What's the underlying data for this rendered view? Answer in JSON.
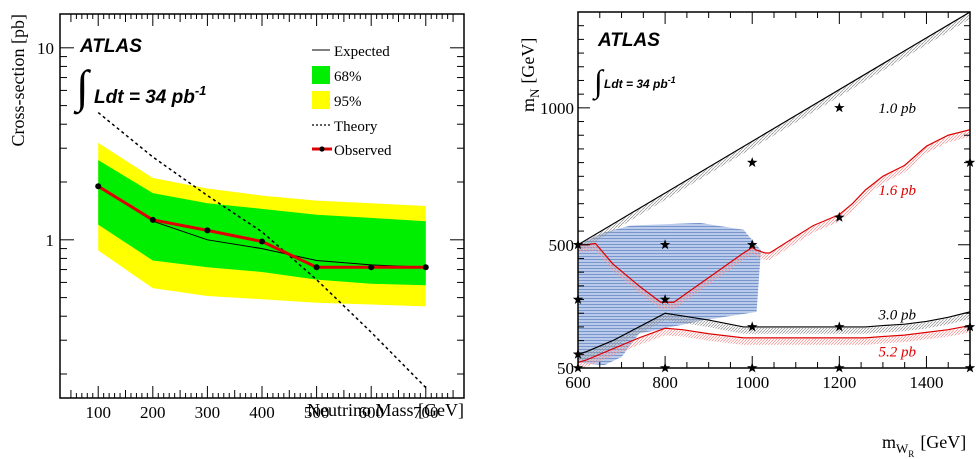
{
  "chart_data": [
    {
      "type": "line",
      "xlabel": "Neutrino Mass [GeV]",
      "ylabel": "Cross-section [pb]",
      "xlim": [
        30,
        770
      ],
      "ylim": [
        0.15,
        15
      ],
      "yscale": "log",
      "xticks": [
        100,
        200,
        300,
        400,
        500,
        600,
        700
      ],
      "yticks": [
        1,
        10
      ],
      "atlas_label": "ATLAS",
      "lumi_label": "Ldt = 34 pb",
      "lumi_sup": "-1",
      "legend": {
        "position": "top-right",
        "entries": [
          "Expected",
          "68%",
          "95%",
          "Theory",
          "Observed"
        ]
      },
      "series": [
        {
          "name": "Expected",
          "x": [
            100,
            200,
            300,
            400,
            500,
            600,
            700
          ],
          "values": [
            1.9,
            1.25,
            1.0,
            0.9,
            0.78,
            0.74,
            0.72
          ]
        },
        {
          "name": "68%",
          "x": [
            100,
            200,
            300,
            400,
            500,
            600,
            700
          ],
          "lower": [
            1.2,
            0.78,
            0.72,
            0.68,
            0.62,
            0.59,
            0.58
          ],
          "upper": [
            2.6,
            1.75,
            1.55,
            1.45,
            1.35,
            1.3,
            1.25
          ]
        },
        {
          "name": "95%",
          "x": [
            100,
            200,
            300,
            400,
            500,
            600,
            700
          ],
          "lower": [
            0.88,
            0.56,
            0.51,
            0.49,
            0.47,
            0.46,
            0.45
          ],
          "upper": [
            3.2,
            2.1,
            1.85,
            1.7,
            1.6,
            1.55,
            1.5
          ]
        },
        {
          "name": "Theory",
          "x": [
            100,
            200,
            300,
            400,
            500,
            600,
            700
          ],
          "values": [
            4.6,
            2.7,
            1.7,
            1.1,
            0.62,
            0.33,
            0.17
          ]
        },
        {
          "name": "Observed",
          "x": [
            100,
            200,
            300,
            400,
            500,
            600,
            700
          ],
          "values": [
            1.9,
            1.27,
            1.12,
            0.98,
            0.72,
            0.72,
            0.72
          ]
        }
      ],
      "colors": {
        "band68": "#00ee00",
        "band95": "#ffff00",
        "observed": "#dd0000"
      }
    },
    {
      "type": "line",
      "xlabel": "m",
      "xlabel_sub": "W",
      "xlabel_sub2": "R",
      "xlabel_unit": "[GeV]",
      "ylabel": "m",
      "ylabel_sub": "N",
      "ylabel_unit": "[GeV]",
      "xlim": [
        600,
        1500
      ],
      "ylim": [
        50,
        1350
      ],
      "xticks": [
        600,
        800,
        1000,
        1200,
        1400
      ],
      "yticks": [
        50,
        500,
        1000
      ],
      "atlas_label": "ATLAS",
      "lumi_label": "Ldt = 34 pb",
      "lumi_sup": "-1",
      "contours": [
        {
          "label": "1.0 pb",
          "color": "#000000",
          "x": [
            600,
            1500
          ],
          "y": [
            500,
            1350
          ],
          "label_x": 1290,
          "label_y": 1000
        },
        {
          "label": "1.6 pb",
          "color": "#dd0000",
          "x": [
            600,
            620,
            640,
            680,
            740,
            790,
            820,
            900,
            980,
            1000,
            1010,
            1030,
            1040,
            1090,
            1140,
            1200,
            1230,
            1260,
            1300,
            1350,
            1400,
            1450,
            1500
          ],
          "y": [
            500,
            500,
            505,
            430,
            350,
            290,
            290,
            380,
            470,
            490,
            480,
            470,
            470,
            520,
            570,
            610,
            650,
            700,
            750,
            790,
            860,
            900,
            920
          ],
          "label_x": 1290,
          "label_y": 700
        },
        {
          "label": "3.0 pb",
          "color": "#000000",
          "x": [
            600,
            620,
            680,
            740,
            800,
            840,
            900,
            980,
            1040,
            1100,
            1150,
            1200,
            1260,
            1300,
            1350,
            1400,
            1450,
            1500
          ],
          "y": [
            100,
            110,
            150,
            200,
            250,
            240,
            225,
            200,
            200,
            200,
            200,
            200,
            200,
            205,
            210,
            220,
            235,
            255
          ],
          "label_x": 1290,
          "label_y": 245
        },
        {
          "label": "5.2 pb",
          "color": "#dd0000",
          "x": [
            600,
            620,
            680,
            740,
            800,
            840,
            900,
            980,
            1040,
            1100,
            1150,
            1200,
            1260,
            1300,
            1350,
            1400,
            1450,
            1500
          ],
          "y": [
            70,
            80,
            120,
            160,
            195,
            190,
            175,
            160,
            160,
            160,
            160,
            160,
            160,
            165,
            170,
            180,
            190,
            205
          ],
          "label_x": 1290,
          "label_y": 110
        }
      ],
      "excluded_region": {
        "color": "#7f9fd8",
        "x": [
          600,
          660,
          720,
          800,
          880,
          980,
          1020,
          1010,
          890,
          740,
          700,
          660,
          600
        ],
        "y": [
          500,
          545,
          570,
          575,
          580,
          555,
          480,
          255,
          225,
          175,
          90,
          60,
          70
        ]
      },
      "signal_points": [
        {
          "x": 600,
          "y": 500
        },
        {
          "x": 600,
          "y": 300
        },
        {
          "x": 600,
          "y": 100
        },
        {
          "x": 600,
          "y": 50
        },
        {
          "x": 800,
          "y": 500
        },
        {
          "x": 800,
          "y": 300
        },
        {
          "x": 800,
          "y": 50
        },
        {
          "x": 1000,
          "y": 800
        },
        {
          "x": 1000,
          "y": 500
        },
        {
          "x": 1000,
          "y": 200
        },
        {
          "x": 1000,
          "y": 50
        },
        {
          "x": 1200,
          "y": 1000
        },
        {
          "x": 1200,
          "y": 600
        },
        {
          "x": 1200,
          "y": 200
        },
        {
          "x": 1200,
          "y": 50
        },
        {
          "x": 1500,
          "y": 800
        },
        {
          "x": 1500,
          "y": 200
        },
        {
          "x": 1500,
          "y": 50
        }
      ]
    }
  ]
}
